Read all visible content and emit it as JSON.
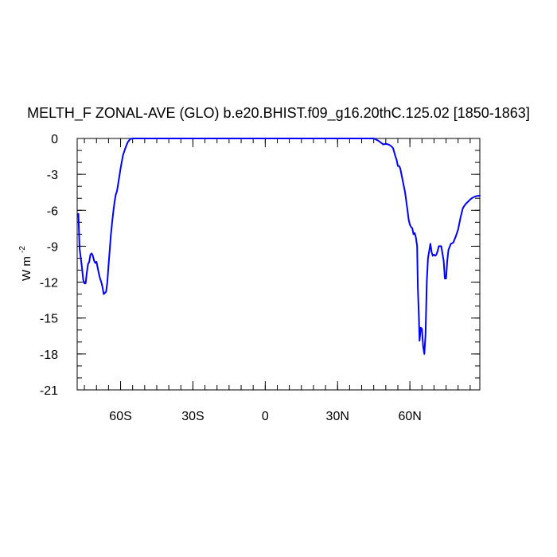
{
  "chart_data": {
    "type": "line",
    "title": "MELTH_F ZONAL-AVE (GLO) b.e20.BHIST.f09_g16.20thC.125.02 [1850-1863]",
    "ylabel_main": "W m",
    "ylabel_sup": "-2",
    "xlabel": "",
    "xlim": [
      -78,
      89
    ],
    "ylim": [
      -21,
      0
    ],
    "xticks": [
      {
        "value": -60,
        "label": "60S"
      },
      {
        "value": -30,
        "label": "30S"
      },
      {
        "value": 0,
        "label": "0"
      },
      {
        "value": 30,
        "label": "30N"
      },
      {
        "value": 60,
        "label": "60N"
      }
    ],
    "yticks": [
      {
        "value": 0,
        "label": "0"
      },
      {
        "value": -3,
        "label": "-3"
      },
      {
        "value": -6,
        "label": "-6"
      },
      {
        "value": -9,
        "label": "-9"
      },
      {
        "value": -12,
        "label": "-12"
      },
      {
        "value": -15,
        "label": "-15"
      },
      {
        "value": -18,
        "label": "-18"
      },
      {
        "value": -21,
        "label": "-21"
      }
    ],
    "line_color": "#0000ff",
    "series": [
      {
        "x": [
          -77.5,
          -77.0,
          -76.5,
          -76.0,
          -75.5,
          -75.0,
          -74.5,
          -74.0,
          -73.5,
          -73.0,
          -72.5,
          -72.0,
          -71.5,
          -71.0,
          -70.5,
          -70.0,
          -69.5,
          -69.0,
          -68.5,
          -68.0,
          -67.5,
          -67.0,
          -66.5,
          -66.0,
          -65.5,
          -65.0,
          -64.5,
          -64.0,
          -63.5,
          -63.0,
          -62.5,
          -62.0,
          -61.5,
          -61.0,
          -60.0,
          -59.0,
          -58.0,
          -57.0,
          -56.0,
          -55.0,
          -54.0,
          -53.5,
          -53.0,
          -52.0,
          -50.0,
          45.0,
          47.0,
          48.0,
          49.0,
          50.0,
          51.0,
          52.0,
          53.0,
          54.0,
          54.5,
          55.0,
          55.5,
          56.0,
          57.0,
          58.0,
          59.0,
          59.5,
          60.0,
          60.5,
          61.0,
          61.5,
          62.0,
          62.5,
          63.0,
          63.3,
          63.7,
          64.0,
          64.5,
          65.0,
          65.5,
          66.0,
          66.5,
          67.0,
          67.5,
          68.0,
          68.5,
          69.0,
          69.5,
          70.0,
          70.5,
          71.0,
          71.5,
          72.0,
          73.0,
          74.0,
          74.5,
          75.0,
          75.5,
          76.0,
          77.0,
          78.0,
          79.0,
          80.0,
          81.0,
          82.0,
          83.0,
          84.0,
          85.0,
          86.0,
          87.0,
          88.0,
          89.0
        ],
        "y": [
          -6.3,
          -9.2,
          -10.0,
          -10.8,
          -11.8,
          -12.1,
          -12.1,
          -11.2,
          -10.5,
          -10.3,
          -9.7,
          -9.6,
          -9.8,
          -10.2,
          -10.4,
          -10.3,
          -10.8,
          -11.3,
          -11.7,
          -12.0,
          -12.4,
          -13.0,
          -12.9,
          -12.8,
          -12.0,
          -10.6,
          -9.3,
          -8.0,
          -7.0,
          -6.1,
          -5.3,
          -4.7,
          -4.4,
          -3.8,
          -2.5,
          -1.4,
          -0.8,
          -0.3,
          -0.05,
          0.0,
          0.0,
          0.0,
          0.0,
          0.0,
          0.0,
          0.0,
          -0.2,
          -0.35,
          -0.5,
          -0.45,
          -0.5,
          -0.6,
          -0.8,
          -1.5,
          -1.8,
          -2.3,
          -2.3,
          -2.5,
          -3.5,
          -4.5,
          -6.0,
          -6.8,
          -7.2,
          -7.4,
          -7.5,
          -8.0,
          -7.9,
          -8.3,
          -9.0,
          -12.5,
          -14.7,
          -16.9,
          -15.8,
          -15.9,
          -17.4,
          -18.0,
          -16.3,
          -12.0,
          -10.0,
          -9.4,
          -8.8,
          -9.5,
          -9.8,
          -9.7,
          -9.8,
          -9.7,
          -9.4,
          -9.0,
          -9.0,
          -10.2,
          -11.7,
          -11.7,
          -10.2,
          -9.3,
          -8.8,
          -8.7,
          -8.2,
          -7.6,
          -6.6,
          -5.8,
          -5.5,
          -5.3,
          -5.1,
          -4.95,
          -4.85,
          -4.8,
          -4.78
        ]
      }
    ]
  }
}
